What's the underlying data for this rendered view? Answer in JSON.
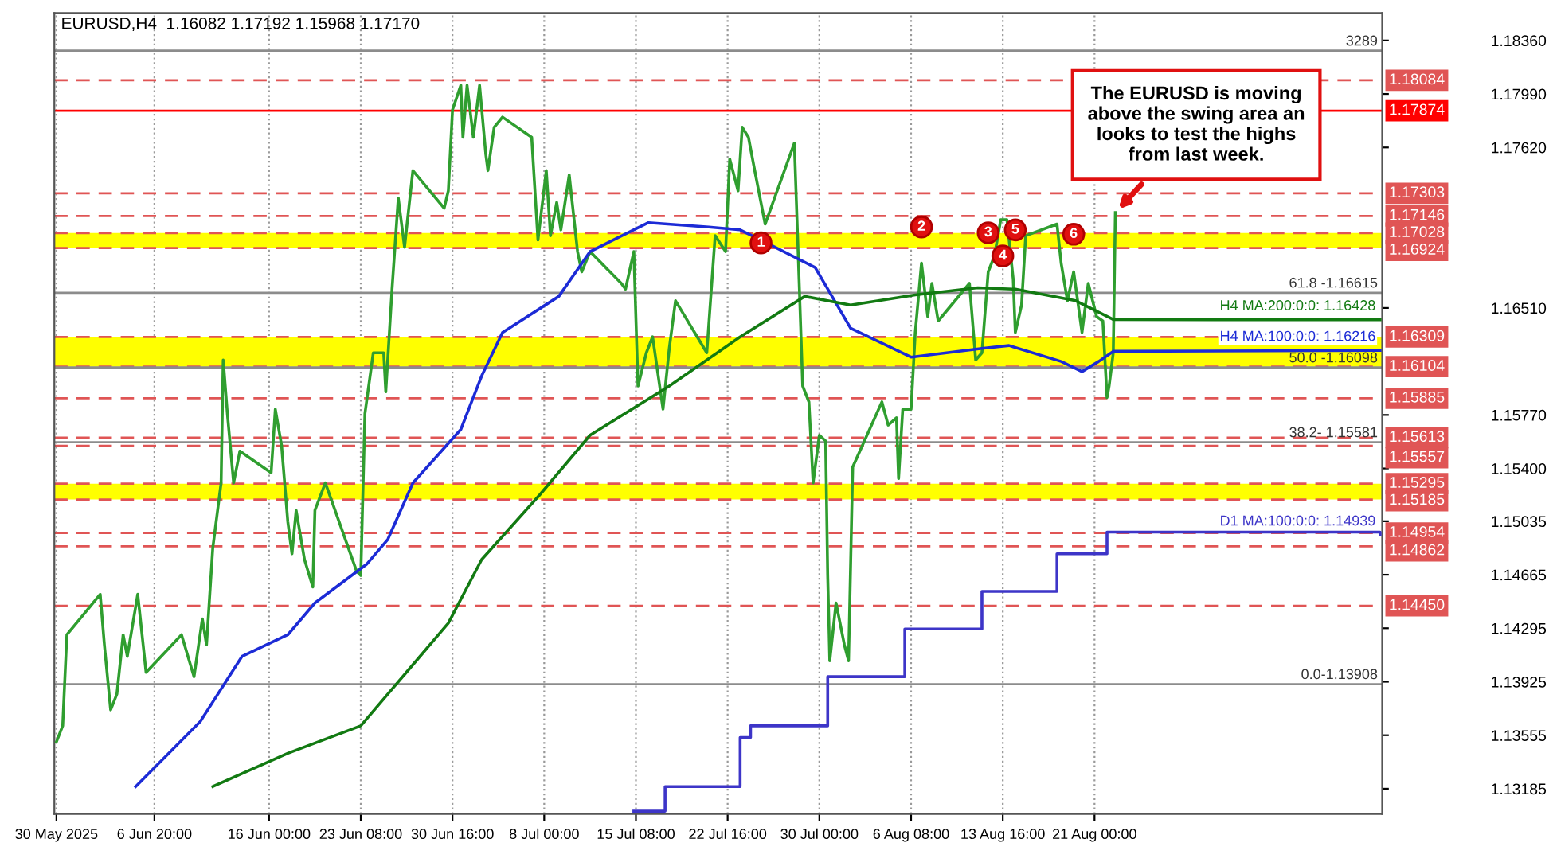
{
  "chart_data": {
    "type": "line",
    "title": "EURUSD,H4  1.16082 1.17192 1.15968 1.17170",
    "xlim": [
      "2025-05-29T20:00",
      "2025-09-13T00:00"
    ],
    "ylim": [
      1.1301,
      1.1855
    ],
    "xticks": [
      {
        "value": "2025-05-30T00:00",
        "label": "30 May 2025"
      },
      {
        "value": "2025-06-06T20:00",
        "label": "6 Jun 20:00"
      },
      {
        "value": "2025-06-16T00:00",
        "label": "16 Jun 00:00"
      },
      {
        "value": "2025-06-23T08:00",
        "label": "23 Jun 08:00"
      },
      {
        "value": "2025-06-30T16:00",
        "label": "30 Jun 16:00"
      },
      {
        "value": "2025-07-08T00:00",
        "label": "8 Jul 00:00"
      },
      {
        "value": "2025-07-15T08:00",
        "label": "15 Jul 08:00"
      },
      {
        "value": "2025-07-22T16:00",
        "label": "22 Jul 16:00"
      },
      {
        "value": "2025-07-30T00:00",
        "label": "30 Jul 00:00"
      },
      {
        "value": "2025-08-06T08:00",
        "label": "6 Aug 08:00"
      },
      {
        "value": "2025-08-13T16:00",
        "label": "13 Aug 16:00"
      },
      {
        "value": "2025-08-21T00:00",
        "label": "21 Aug 00:00"
      }
    ],
    "yticks": [
      {
        "value": 1.1836,
        "label": "1.18360"
      },
      {
        "value": 1.1799,
        "label": "1.17990"
      },
      {
        "value": 1.1762,
        "label": "1.17620"
      },
      {
        "value": 1.1651,
        "label": "1.16510"
      },
      {
        "value": 1.1577,
        "label": "1.15770"
      },
      {
        "value": 1.154,
        "label": "1.15400"
      },
      {
        "value": 1.15035,
        "label": "1.15035"
      },
      {
        "value": 1.14665,
        "label": "1.14665"
      },
      {
        "value": 1.14295,
        "label": "1.14295"
      },
      {
        "value": 1.13925,
        "label": "1.13925"
      },
      {
        "value": 1.13555,
        "label": "1.13555"
      },
      {
        "value": 1.13185,
        "label": "1.13185"
      }
    ],
    "grid": "x",
    "series": [
      {
        "color": "#2f9e2f",
        "x": [
          "2025-05-30T00:00",
          "2025-05-30T12:00",
          "2025-05-30T20:00",
          "2025-06-02T12:00",
          "2025-06-02T20:00",
          "2025-06-03T08:00",
          "2025-06-03T20:00",
          "2025-06-04T08:00",
          "2025-06-04T16:00",
          "2025-06-05T12:00",
          "2025-06-06T04:00",
          "2025-06-09T00:00",
          "2025-06-10T00:00",
          "2025-06-10T16:00",
          "2025-06-11T00:00",
          "2025-06-11T12:00",
          "2025-06-12T04:00",
          "2025-06-12T08:00",
          "2025-06-12T16:00",
          "2025-06-13T04:00",
          "2025-06-13T16:00",
          "2025-06-16T04:00",
          "2025-06-16T12:00",
          "2025-06-17T00:00",
          "2025-06-17T12:00",
          "2025-06-17T20:00",
          "2025-06-18T04:00",
          "2025-06-18T20:00",
          "2025-06-19T12:00",
          "2025-06-19T16:00",
          "2025-06-20T12:00",
          "2025-06-23T00:00",
          "2025-06-23T08:00",
          "2025-06-23T16:00",
          "2025-06-24T08:00",
          "2025-06-25T04:00",
          "2025-06-25T08:00",
          "2025-06-25T20:00",
          "2025-06-26T08:00",
          "2025-06-26T20:00",
          "2025-06-27T12:00",
          "2025-06-30T00:00",
          "2025-06-30T08:00",
          "2025-06-30T16:00",
          "2025-07-01T08:00",
          "2025-07-01T12:00",
          "2025-07-01T20:00",
          "2025-07-02T08:00",
          "2025-07-02T20:00",
          "2025-07-03T08:00",
          "2025-07-03T12:00",
          "2025-07-04T00:00",
          "2025-07-04T16:00",
          "2025-07-07T00:00",
          "2025-07-07T12:00",
          "2025-07-08T04:00",
          "2025-07-08T12:00",
          "2025-07-09T00:00",
          "2025-07-09T08:00",
          "2025-07-10T00:00",
          "2025-07-10T16:00",
          "2025-07-11T00:00",
          "2025-07-11T16:00",
          "2025-07-14T04:00",
          "2025-07-14T12:00",
          "2025-07-15T04:00",
          "2025-07-15T12:00",
          "2025-07-16T04:00",
          "2025-07-16T16:00",
          "2025-07-17T12:00",
          "2025-07-18T00:00",
          "2025-07-18T12:00",
          "2025-07-21T00:00",
          "2025-07-21T16:00",
          "2025-07-22T12:00",
          "2025-07-22T20:00",
          "2025-07-23T12:00",
          "2025-07-23T20:00",
          "2025-07-24T08:00",
          "2025-07-24T20:00",
          "2025-07-25T16:00",
          "2025-07-28T00:00",
          "2025-07-28T08:00",
          "2025-07-28T16:00",
          "2025-07-29T04:00",
          "2025-07-29T12:00",
          "2025-07-30T00:00",
          "2025-07-30T12:00",
          "2025-07-30T16:00",
          "2025-07-30T20:00",
          "2025-07-31T08:00",
          "2025-08-01T00:00",
          "2025-08-01T08:00",
          "2025-08-01T16:00",
          "2025-08-04T00:00",
          "2025-08-04T12:00",
          "2025-08-05T04:00",
          "2025-08-05T08:00",
          "2025-08-05T16:00",
          "2025-08-06T08:00",
          "2025-08-06T16:00",
          "2025-08-07T04:00",
          "2025-08-07T16:00",
          "2025-08-08T00:00",
          "2025-08-08T12:00",
          "2025-08-11T00:00",
          "2025-08-11T12:00",
          "2025-08-12T00:00",
          "2025-08-12T12:00",
          "2025-08-13T00:00",
          "2025-08-13T12:00",
          "2025-08-14T00:00",
          "2025-08-14T12:00",
          "2025-08-14T16:00",
          "2025-08-15T04:00",
          "2025-08-15T12:00",
          "2025-08-18T00:00",
          "2025-08-18T08:00",
          "2025-08-18T20:00",
          "2025-08-19T08:00",
          "2025-08-20T00:00",
          "2025-08-20T12:00",
          "2025-08-21T04:00",
          "2025-08-21T16:00",
          "2025-08-22T00:00",
          "2025-08-22T04:00",
          "2025-08-22T12:00",
          "2025-08-22T16:00"
        ],
        "values": [
          1.1351,
          1.1362,
          1.1425,
          1.1453,
          1.1418,
          1.1373,
          1.1384,
          1.1425,
          1.141,
          1.1453,
          1.1399,
          1.1425,
          1.1396,
          1.1436,
          1.1418,
          1.1485,
          1.153,
          1.1615,
          1.1578,
          1.153,
          1.1552,
          1.1537,
          1.1581,
          1.1556,
          1.1503,
          1.1481,
          1.1511,
          1.1477,
          1.1458,
          1.1511,
          1.153,
          1.1469,
          1.1466,
          1.1578,
          1.162,
          1.162,
          1.1593,
          1.1664,
          1.1727,
          1.1693,
          1.1746,
          1.172,
          1.1732,
          1.1788,
          1.1805,
          1.1769,
          1.1805,
          1.1769,
          1.1805,
          1.1757,
          1.1746,
          1.1776,
          1.1783,
          1.1769,
          1.1698,
          1.1746,
          1.1701,
          1.1724,
          1.1705,
          1.1743,
          1.169,
          1.1676,
          1.169,
          1.1668,
          1.1664,
          1.169,
          1.1597,
          1.162,
          1.1631,
          1.1581,
          1.1623,
          1.1656,
          1.162,
          1.1701,
          1.169,
          1.1754,
          1.1732,
          1.1776,
          1.1769,
          1.1746,
          1.1709,
          1.1765,
          1.1682,
          1.1597,
          1.1586,
          1.153,
          1.1563,
          1.1559,
          1.1466,
          1.1407,
          1.1447,
          1.1418,
          1.1407,
          1.1541,
          1.1586,
          1.157,
          1.1575,
          1.1533,
          1.1581,
          1.1581,
          1.1634,
          1.1682,
          1.1645,
          1.1668,
          1.1642,
          1.1668,
          1.1615,
          1.162,
          1.1676,
          1.1687,
          1.1712,
          1.1712,
          1.1671,
          1.1634,
          1.1653,
          1.1701,
          1.1709,
          1.1682,
          1.1656,
          1.1676,
          1.1634,
          1.1668,
          1.1645,
          1.1642,
          1.1589,
          1.1597,
          1.162,
          1.1717
        ]
      },
      {
        "name": "H4 MA:100:0:0: 1.16216",
        "color": "#1c2bd6",
        "x": [
          "2025-06-05T08:00",
          "2025-06-10T12:00",
          "2025-06-13T20:00",
          "2025-06-17T12:00",
          "2025-06-19T16:00",
          "2025-06-23T20:00",
          "2025-06-25T12:00",
          "2025-06-27T12:00",
          "2025-07-01T08:00",
          "2025-07-03T00:00",
          "2025-07-04T16:00",
          "2025-07-09T04:00",
          "2025-07-11T16:00",
          "2025-07-16T08:00",
          "2025-07-21T04:00",
          "2025-07-23T16:00",
          "2025-07-25T08:00",
          "2025-07-29T16:00",
          "2025-08-01T12:00",
          "2025-08-06T08:00",
          "2025-08-12T00:00",
          "2025-08-14T04:00",
          "2025-08-18T08:00",
          "2025-08-20T00:00",
          "2025-08-21T08:00",
          "2025-08-22T12:00",
          "2025-09-12T20:00"
        ],
        "values": [
          1.132,
          1.1365,
          1.141,
          1.1425,
          1.1447,
          1.1474,
          1.1491,
          1.153,
          1.1567,
          1.1604,
          1.1634,
          1.1659,
          1.169,
          1.171,
          1.1707,
          1.1705,
          1.1698,
          1.1679,
          1.1637,
          1.1617,
          1.1623,
          1.1625,
          1.1614,
          1.1607,
          1.1614,
          1.1621,
          1.16216
        ]
      },
      {
        "name": "H4 MA:200:0:0: 1.16428",
        "color": "#127a12",
        "x": [
          "2025-06-11T12:00",
          "2025-06-17T12:00",
          "2025-06-23T08:00",
          "2025-06-25T12:00",
          "2025-06-30T08:00",
          "2025-07-03T00:00",
          "2025-07-07T16:00",
          "2025-07-11T16:00",
          "2025-07-18T00:00",
          "2025-07-23T16:00",
          "2025-07-28T20:00",
          "2025-08-01T12:00",
          "2025-08-06T16:00",
          "2025-08-11T16:00",
          "2025-08-14T16:00",
          "2025-08-19T12:00",
          "2025-08-22T12:00",
          "2025-09-12T20:00"
        ],
        "values": [
          1.132,
          1.1343,
          1.1362,
          1.1384,
          1.1433,
          1.1477,
          1.1522,
          1.1563,
          1.1597,
          1.1631,
          1.1659,
          1.1653,
          1.166,
          1.1665,
          1.1664,
          1.1656,
          1.1643,
          1.16428
        ]
      },
      {
        "name": "D1 MA:100:0:0: 1.14939",
        "type": "step",
        "color": "#3d35c8",
        "x": [
          "2025-07-15T04:00",
          "2025-07-17T16:00",
          "2025-07-23T16:00",
          "2025-07-24T12:00",
          "2025-07-30T16:00",
          "2025-08-05T20:00",
          "2025-08-12T00:00",
          "2025-08-18T00:00",
          "2025-08-22T00:00",
          "2025-09-12T20:00"
        ],
        "values": [
          1.1303,
          1.132,
          1.1354,
          1.1362,
          1.1396,
          1.1429,
          1.1455,
          1.1481,
          1.1496,
          1.14939
        ]
      }
    ],
    "bands": [
      {
        "axis": "y",
        "from": 1.16924,
        "to": 1.17028,
        "color": "#ffff00"
      },
      {
        "axis": "y",
        "from": 1.16104,
        "to": 1.16309,
        "color": "#ffff00"
      },
      {
        "axis": "y",
        "from": 1.15185,
        "to": 1.15295,
        "color": "#ffff00"
      }
    ],
    "ref_lines": [
      {
        "axis": "y",
        "value": 1.18289,
        "color": "#8c8c8c",
        "line_style": "solid"
      },
      {
        "axis": "y",
        "value": 1.18084,
        "label": "1.18084",
        "color": "#e05555",
        "line_style": "dashed"
      },
      {
        "axis": "y",
        "value": 1.17874,
        "label": "1.17874",
        "color": "#ff0000",
        "line_style": "solid"
      },
      {
        "axis": "y",
        "value": 1.17303,
        "label": "1.17303",
        "color": "#e05555",
        "line_style": "dashed"
      },
      {
        "axis": "y",
        "value": 1.17146,
        "label": "1.17146",
        "color": "#e05555",
        "line_style": "dashed"
      },
      {
        "axis": "y",
        "value": 1.17028,
        "label": "1.17028",
        "color": "#e05555",
        "line_style": "dashed"
      },
      {
        "axis": "y",
        "value": 1.16924,
        "label": "1.16924",
        "color": "#e05555",
        "line_style": "dashed"
      },
      {
        "axis": "y",
        "value": 1.16615,
        "color": "#8c8c8c",
        "line_style": "solid"
      },
      {
        "axis": "y",
        "value": 1.16309,
        "label": "1.16309",
        "color": "#e05555",
        "line_style": "dashed"
      },
      {
        "axis": "y",
        "value": 1.16104,
        "label": "1.16104",
        "color": "#e05555",
        "line_style": "dashed"
      },
      {
        "axis": "y",
        "value": 1.16098,
        "color": "#8c8c8c",
        "line_style": "solid"
      },
      {
        "axis": "y",
        "value": 1.15885,
        "label": "1.15885",
        "color": "#e05555",
        "line_style": "dashed"
      },
      {
        "axis": "y",
        "value": 1.15613,
        "label": "1.15613",
        "color": "#e05555",
        "line_style": "dashed"
      },
      {
        "axis": "y",
        "value": 1.15581,
        "color": "#8c8c8c",
        "line_style": "solid"
      },
      {
        "axis": "y",
        "value": 1.15557,
        "label": "1.15557",
        "color": "#e05555",
        "line_style": "dashed"
      },
      {
        "axis": "y",
        "value": 1.15295,
        "label": "1.15295",
        "color": "#e05555",
        "line_style": "dashed"
      },
      {
        "axis": "y",
        "value": 1.15185,
        "label": "1.15185",
        "color": "#e05555",
        "line_style": "dashed"
      },
      {
        "axis": "y",
        "value": 1.14954,
        "label": "1.14954",
        "color": "#e05555",
        "line_style": "dashed"
      },
      {
        "axis": "y",
        "value": 1.14862,
        "label": "1.14862",
        "color": "#e05555",
        "line_style": "dashed"
      },
      {
        "axis": "y",
        "value": 1.1445,
        "label": "1.14450",
        "color": "#e05555",
        "line_style": "dashed"
      },
      {
        "axis": "y",
        "value": 1.13908,
        "color": "#8c8c8c",
        "line_style": "solid"
      }
    ],
    "annotations": [
      "The EURUSD is moving\nabove the swing area an\nlooks to test the highs\nfrom last week.",
      {
        "text": "1",
        "x": "2025-07-25T08:00",
        "y": 1.1696
      },
      {
        "text": "2",
        "x": "2025-08-07T04:00",
        "y": 1.1707
      },
      {
        "text": "3",
        "x": "2025-08-12T12:00",
        "y": 1.1703
      },
      {
        "text": "4",
        "x": "2025-08-13T16:00",
        "y": 1.1687
      },
      {
        "text": "5",
        "x": "2025-08-14T16:00",
        "y": 1.1705
      },
      {
        "text": "6",
        "x": "2025-08-19T08:00",
        "y": 1.1702
      },
      {
        "text": "3289",
        "y": 1.18289
      },
      {
        "text": "61.8 -1.16615",
        "y": 1.16615
      },
      {
        "text": "50.0 -1.16098",
        "y": 1.16098
      },
      {
        "text": "38.2- 1.15581",
        "y": 1.15581
      },
      {
        "text": "0.0-1.13908",
        "y": 1.13908
      }
    ]
  }
}
